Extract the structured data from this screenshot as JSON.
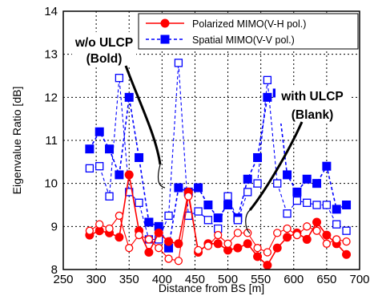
{
  "chart_data": {
    "type": "line",
    "xlabel": "Distance from BS [m]",
    "ylabel": "Eigenvalue Ratio [dB]",
    "xlim": [
      250,
      700
    ],
    "ylim": [
      8,
      14
    ],
    "xticks": [
      250,
      300,
      350,
      400,
      450,
      500,
      550,
      600,
      650,
      700
    ],
    "yticks": [
      8,
      9,
      10,
      11,
      12,
      13,
      14
    ],
    "grid": true,
    "legend_position": "top-right",
    "colors": {
      "polarized": "#ff0000",
      "spatial": "#0000ff"
    },
    "series": [
      {
        "name": "Polarized MIMO(V-H pol.)",
        "variant": "w/o ULCP (Bold)",
        "color": "#ff0000",
        "marker": "circle-filled",
        "line": "solid",
        "x": [
          290,
          305,
          320,
          335,
          350,
          365,
          380,
          395,
          410,
          425,
          440,
          455,
          470,
          485,
          500,
          515,
          530,
          545,
          560,
          575,
          590,
          605,
          620,
          635,
          650,
          665,
          680
        ],
        "y": [
          8.8,
          8.9,
          8.85,
          8.75,
          10.2,
          8.9,
          8.4,
          8.85,
          8.65,
          8.6,
          9.8,
          8.4,
          8.6,
          8.6,
          8.45,
          8.5,
          8.6,
          8.3,
          8.1,
          8.5,
          8.75,
          8.85,
          8.7,
          9.1,
          8.8,
          8.6,
          8.35
        ]
      },
      {
        "name": "Spatial MIMO(V-V pol.)",
        "variant": "w/o ULCP (Bold)",
        "color": "#0000ff",
        "marker": "square-filled",
        "line": "dashed",
        "x": [
          290,
          305,
          320,
          335,
          350,
          365,
          380,
          395,
          410,
          425,
          440,
          455,
          470,
          485,
          500,
          515,
          530,
          545,
          560,
          575,
          590,
          605,
          620,
          635,
          650,
          665,
          680
        ],
        "y": [
          10.8,
          11.2,
          10.8,
          10.2,
          12.0,
          10.6,
          9.1,
          9.0,
          8.5,
          9.9,
          9.8,
          9.9,
          9.5,
          9.2,
          9.5,
          9.2,
          10.1,
          10.6,
          12.0,
          12.1,
          10.2,
          9.8,
          10.1,
          10.0,
          10.4,
          9.4,
          9.5
        ]
      },
      {
        "name": "Polarized MIMO(V-H pol.)",
        "variant": "with ULCP (Blank)",
        "color": "#ff0000",
        "marker": "circle-open",
        "line": "solid",
        "x": [
          290,
          305,
          320,
          335,
          350,
          365,
          380,
          395,
          410,
          425,
          440,
          455,
          470,
          485,
          500,
          515,
          530,
          545,
          560,
          575,
          590,
          605,
          620,
          635,
          650,
          665,
          680
        ],
        "y": [
          8.9,
          9.05,
          8.95,
          9.25,
          8.5,
          8.8,
          8.7,
          8.5,
          8.25,
          8.2,
          9.7,
          8.45,
          8.55,
          8.8,
          8.6,
          8.85,
          8.85,
          8.5,
          8.4,
          8.85,
          8.95,
          8.8,
          9.0,
          8.9,
          8.6,
          8.7,
          8.65
        ]
      },
      {
        "name": "Spatial MIMO(V-V pol.)",
        "variant": "with ULCP (Blank)",
        "color": "#0000ff",
        "marker": "square-open",
        "line": "dashed",
        "x": [
          290,
          305,
          320,
          335,
          350,
          365,
          380,
          395,
          410,
          425,
          440,
          455,
          470,
          485,
          500,
          515,
          530,
          545,
          560,
          575,
          590,
          605,
          620,
          635,
          650,
          665,
          680
        ],
        "y": [
          10.35,
          10.4,
          9.7,
          12.45,
          9.8,
          9.55,
          8.7,
          8.7,
          9.25,
          12.8,
          9.25,
          9.35,
          9.15,
          8.95,
          9.7,
          9.15,
          9.8,
          10.0,
          12.4,
          10.0,
          9.3,
          9.6,
          9.55,
          9.5,
          9.5,
          9.05,
          8.9
        ]
      }
    ],
    "annotations": [
      {
        "lines": [
          "w/o ULCP",
          "(Bold)"
        ]
      },
      {
        "lines": [
          "with ULCP",
          "(Blank)"
        ]
      }
    ]
  }
}
